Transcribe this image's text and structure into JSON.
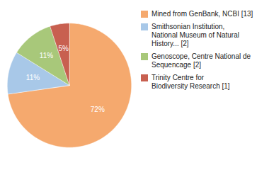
{
  "chart_data": {
    "type": "pie",
    "categories": [
      "Mined from GenBank, NCBI [13]",
      "Smithsonian Institution,\nNational Museum of Natural\nHistory... [2]",
      "Genoscope, Centre National de\nSequencage [2]",
      "Trinity Centre for\nBiodiversity Research [1]"
    ],
    "values": [
      72,
      11,
      11,
      5
    ],
    "value_labels": [
      "72%",
      "11%",
      "11%",
      "5%"
    ],
    "colors": [
      "#f5a96e",
      "#a8c8e8",
      "#a8c87a",
      "#c86050"
    ],
    "data_labels": true,
    "legend": "right"
  }
}
